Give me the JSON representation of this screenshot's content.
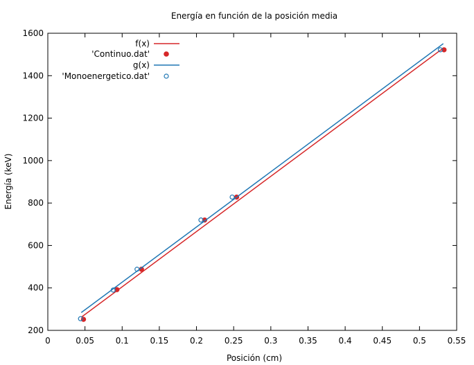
{
  "chart_data": {
    "type": "scatter",
    "title": "Energía en función de la posición media",
    "xlabel": "Posición (cm)",
    "ylabel": "Energía (keV)",
    "xlim": [
      0,
      0.55
    ],
    "ylim": [
      200,
      1600
    ],
    "xticks": [
      0,
      0.05,
      0.1,
      0.15,
      0.2,
      0.25,
      0.3,
      0.35,
      0.4,
      0.45,
      0.5,
      0.55
    ],
    "xtick_labels": [
      "0",
      "0.05",
      "0.1",
      "0.15",
      "0.2",
      "0.25",
      "0.3",
      "0.35",
      "0.4",
      "0.45",
      "0.5",
      "0.55"
    ],
    "yticks": [
      200,
      400,
      600,
      800,
      1000,
      1200,
      1400,
      1600
    ],
    "ytick_labels": [
      "200",
      "400",
      "600",
      "800",
      "1000",
      "1200",
      "1400",
      "1600"
    ],
    "grid": false,
    "legend_position": "top-left",
    "series": [
      {
        "name": "f(x)",
        "kind": "line",
        "color": "#d62728",
        "points": [
          [
            0.045,
            262
          ],
          [
            0.532,
            1530
          ]
        ]
      },
      {
        "name": "'Continuo.dat'",
        "kind": "points-filled",
        "color": "#d62728",
        "points": [
          [
            0.048,
            252
          ],
          [
            0.093,
            392
          ],
          [
            0.126,
            488
          ],
          [
            0.211,
            720
          ],
          [
            0.254,
            828
          ],
          [
            0.533,
            1522
          ]
        ]
      },
      {
        "name": "g(x)",
        "kind": "line",
        "color": "#1f77b4",
        "points": [
          [
            0.045,
            284
          ],
          [
            0.532,
            1551
          ]
        ]
      },
      {
        "name": "'Monoenergetico.dat'",
        "kind": "points-open",
        "color": "#1f77b4",
        "points": [
          [
            0.044,
            255
          ],
          [
            0.088,
            390
          ],
          [
            0.12,
            488
          ],
          [
            0.206,
            720
          ],
          [
            0.248,
            828
          ],
          [
            0.528,
            1522
          ]
        ]
      }
    ]
  }
}
